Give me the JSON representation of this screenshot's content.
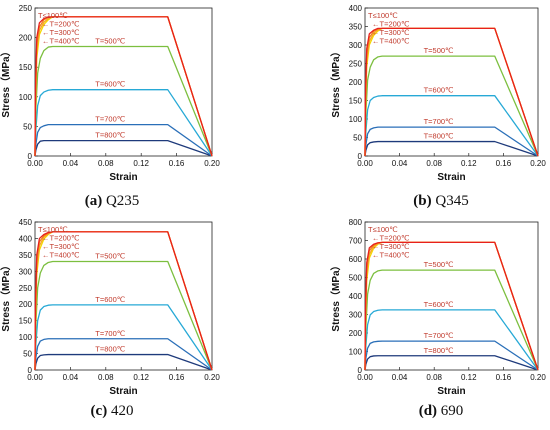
{
  "figure": {
    "panels_order": [
      "Q235",
      "Q345",
      "420",
      "690"
    ]
  },
  "chart_data": [
    {
      "type": "line",
      "panel_letter": "(a)",
      "panel_name": "Q235",
      "xlabel": "Strain",
      "ylabel": "Stress（MPa）",
      "xlim": [
        0,
        0.2
      ],
      "ylim": [
        0,
        250
      ],
      "xticks": [
        "0.00",
        "0.04",
        "0.08",
        "0.12",
        "0.16",
        "0.20"
      ],
      "yticks": [
        "0",
        "50",
        "100",
        "150",
        "200",
        "250"
      ],
      "series": [
        {
          "name": "T≤100℃",
          "color": "#e8201c",
          "x": [
            0,
            0.0005,
            0.002,
            0.005,
            0.01,
            0.015,
            0.02,
            0.15,
            0.2
          ],
          "y": [
            0,
            110,
            200,
            225,
            232,
            235,
            235,
            235,
            0
          ]
        },
        {
          "name": "T=200℃",
          "color": "#f0801e",
          "x": [
            0,
            0.0005,
            0.002,
            0.005,
            0.01,
            0.015,
            0.02,
            0.15,
            0.2
          ],
          "y": [
            0,
            100,
            190,
            218,
            230,
            234,
            235,
            235,
            0
          ]
        },
        {
          "name": "T=300℃",
          "color": "#f7a52a",
          "x": [
            0,
            0.0005,
            0.002,
            0.005,
            0.01,
            0.015,
            0.02,
            0.15,
            0.2
          ],
          "y": [
            0,
            90,
            180,
            212,
            226,
            232,
            235,
            235,
            0
          ]
        },
        {
          "name": "T=400℃",
          "color": "#f5d800",
          "x": [
            0,
            0.0005,
            0.002,
            0.005,
            0.01,
            0.015,
            0.02,
            0.15,
            0.2
          ],
          "y": [
            0,
            80,
            165,
            205,
            222,
            230,
            235,
            235,
            0
          ]
        },
        {
          "name": "T=500℃",
          "color": "#7cbf3f",
          "x": [
            0,
            0.001,
            0.003,
            0.006,
            0.01,
            0.015,
            0.02,
            0.15,
            0.2
          ],
          "y": [
            0,
            80,
            140,
            165,
            178,
            184,
            185,
            185,
            0
          ]
        },
        {
          "name": "T=600℃",
          "color": "#27a9d6",
          "x": [
            0,
            0.001,
            0.003,
            0.006,
            0.01,
            0.015,
            0.02,
            0.15,
            0.2
          ],
          "y": [
            0,
            45,
            85,
            102,
            108,
            111,
            112,
            112,
            0
          ]
        },
        {
          "name": "T=700℃",
          "color": "#2a6fb8",
          "x": [
            0,
            0.001,
            0.003,
            0.006,
            0.01,
            0.015,
            0.02,
            0.15,
            0.2
          ],
          "y": [
            0,
            20,
            40,
            48,
            51,
            53,
            53,
            53,
            0
          ]
        },
        {
          "name": "T=800℃",
          "color": "#1e3a7b",
          "x": [
            0,
            0.001,
            0.003,
            0.006,
            0.01,
            0.015,
            0.02,
            0.15,
            0.2
          ],
          "y": [
            0,
            10,
            20,
            25,
            26,
            26,
            26,
            26,
            0
          ]
        }
      ]
    },
    {
      "type": "line",
      "panel_letter": "(b)",
      "panel_name": "Q345",
      "xlabel": "Strain",
      "ylabel": "Stress（MPa）",
      "xlim": [
        0,
        0.2
      ],
      "ylim": [
        0,
        400
      ],
      "xticks": [
        "0.00",
        "0.04",
        "0.08",
        "0.12",
        "0.16",
        "0.20"
      ],
      "yticks": [
        "0",
        "50",
        "100",
        "150",
        "200",
        "250",
        "300",
        "350",
        "400"
      ],
      "series": [
        {
          "name": "T≤100℃",
          "color": "#e8201c",
          "x": [
            0,
            0.0005,
            0.002,
            0.005,
            0.01,
            0.015,
            0.02,
            0.15,
            0.2
          ],
          "y": [
            0,
            160,
            290,
            330,
            340,
            345,
            345,
            345,
            0
          ]
        },
        {
          "name": "T=200℃",
          "color": "#f0801e",
          "x": [
            0,
            0.0005,
            0.002,
            0.005,
            0.01,
            0.015,
            0.02,
            0.15,
            0.2
          ],
          "y": [
            0,
            145,
            275,
            320,
            337,
            343,
            345,
            345,
            0
          ]
        },
        {
          "name": "T=300℃",
          "color": "#f7a52a",
          "x": [
            0,
            0.0005,
            0.002,
            0.005,
            0.01,
            0.015,
            0.02,
            0.15,
            0.2
          ],
          "y": [
            0,
            130,
            260,
            310,
            332,
            341,
            345,
            345,
            0
          ]
        },
        {
          "name": "T=400℃",
          "color": "#f5d800",
          "x": [
            0,
            0.0005,
            0.002,
            0.005,
            0.01,
            0.015,
            0.02,
            0.15,
            0.2
          ],
          "y": [
            0,
            115,
            240,
            300,
            326,
            338,
            345,
            345,
            0
          ]
        },
        {
          "name": "T=500℃",
          "color": "#7cbf3f",
          "x": [
            0,
            0.001,
            0.003,
            0.006,
            0.01,
            0.015,
            0.02,
            0.15,
            0.2
          ],
          "y": [
            0,
            115,
            205,
            240,
            260,
            268,
            270,
            270,
            0
          ]
        },
        {
          "name": "T=600℃",
          "color": "#27a9d6",
          "x": [
            0,
            0.001,
            0.003,
            0.006,
            0.01,
            0.015,
            0.02,
            0.15,
            0.2
          ],
          "y": [
            0,
            65,
            125,
            150,
            158,
            162,
            163,
            163,
            0
          ]
        },
        {
          "name": "T=700℃",
          "color": "#2a6fb8",
          "x": [
            0,
            0.001,
            0.003,
            0.006,
            0.01,
            0.015,
            0.02,
            0.15,
            0.2
          ],
          "y": [
            0,
            30,
            60,
            72,
            76,
            78,
            78,
            78,
            0
          ]
        },
        {
          "name": "T=800℃",
          "color": "#1e3a7b",
          "x": [
            0,
            0.001,
            0.003,
            0.006,
            0.01,
            0.015,
            0.02,
            0.15,
            0.2
          ],
          "y": [
            0,
            15,
            30,
            36,
            38,
            39,
            39,
            39,
            0
          ]
        }
      ]
    },
    {
      "type": "line",
      "panel_letter": "(c)",
      "panel_name": "420",
      "xlabel": "Strain",
      "ylabel": "Stress（MPa）",
      "xlim": [
        0,
        0.2
      ],
      "ylim": [
        0,
        450
      ],
      "xticks": [
        "0.00",
        "0.04",
        "0.08",
        "0.12",
        "0.16",
        "0.20"
      ],
      "yticks": [
        "0",
        "50",
        "100",
        "150",
        "200",
        "250",
        "300",
        "350",
        "400",
        "450"
      ],
      "series": [
        {
          "name": "T≤100℃",
          "color": "#e8201c",
          "x": [
            0,
            0.0005,
            0.002,
            0.005,
            0.01,
            0.015,
            0.02,
            0.15,
            0.2
          ],
          "y": [
            0,
            195,
            350,
            400,
            412,
            418,
            420,
            420,
            0
          ]
        },
        {
          "name": "T=200℃",
          "color": "#f0801e",
          "x": [
            0,
            0.0005,
            0.002,
            0.005,
            0.01,
            0.015,
            0.02,
            0.15,
            0.2
          ],
          "y": [
            0,
            175,
            330,
            390,
            408,
            416,
            420,
            420,
            0
          ]
        },
        {
          "name": "T=300℃",
          "color": "#f7a52a",
          "x": [
            0,
            0.0005,
            0.002,
            0.005,
            0.01,
            0.015,
            0.02,
            0.15,
            0.2
          ],
          "y": [
            0,
            160,
            310,
            378,
            404,
            414,
            420,
            420,
            0
          ]
        },
        {
          "name": "T=400℃",
          "color": "#f5d800",
          "x": [
            0,
            0.0005,
            0.002,
            0.005,
            0.01,
            0.015,
            0.02,
            0.15,
            0.2
          ],
          "y": [
            0,
            140,
            290,
            365,
            398,
            412,
            420,
            420,
            0
          ]
        },
        {
          "name": "T=500℃",
          "color": "#7cbf3f",
          "x": [
            0,
            0.001,
            0.003,
            0.006,
            0.01,
            0.015,
            0.02,
            0.15,
            0.2
          ],
          "y": [
            0,
            140,
            250,
            295,
            318,
            327,
            330,
            330,
            0
          ]
        },
        {
          "name": "T=600℃",
          "color": "#27a9d6",
          "x": [
            0,
            0.001,
            0.003,
            0.006,
            0.01,
            0.015,
            0.02,
            0.15,
            0.2
          ],
          "y": [
            0,
            80,
            150,
            182,
            193,
            197,
            198,
            198,
            0
          ]
        },
        {
          "name": "T=700℃",
          "color": "#2a6fb8",
          "x": [
            0,
            0.001,
            0.003,
            0.006,
            0.01,
            0.015,
            0.02,
            0.15,
            0.2
          ],
          "y": [
            0,
            38,
            72,
            88,
            93,
            95,
            95,
            95,
            0
          ]
        },
        {
          "name": "T=800℃",
          "color": "#1e3a7b",
          "x": [
            0,
            0.001,
            0.003,
            0.006,
            0.01,
            0.015,
            0.02,
            0.15,
            0.2
          ],
          "y": [
            0,
            19,
            36,
            44,
            46,
            47,
            47,
            47,
            0
          ]
        }
      ]
    },
    {
      "type": "line",
      "panel_letter": "(d)",
      "panel_name": "690",
      "xlabel": "Strain",
      "ylabel": "Stress（MPa）",
      "xlim": [
        0,
        0.2
      ],
      "ylim": [
        0,
        800
      ],
      "xticks": [
        "0.00",
        "0.04",
        "0.08",
        "0.12",
        "0.16",
        "0.20"
      ],
      "yticks": [
        "0",
        "100",
        "200",
        "300",
        "400",
        "500",
        "600",
        "700",
        "800"
      ],
      "series": [
        {
          "name": "T≤100℃",
          "color": "#e8201c",
          "x": [
            0,
            0.0005,
            0.002,
            0.005,
            0.01,
            0.015,
            0.02,
            0.15,
            0.2
          ],
          "y": [
            0,
            320,
            580,
            660,
            680,
            688,
            690,
            690,
            0
          ]
        },
        {
          "name": "T=200℃",
          "color": "#f0801e",
          "x": [
            0,
            0.0005,
            0.002,
            0.005,
            0.01,
            0.015,
            0.02,
            0.15,
            0.2
          ],
          "y": [
            0,
            290,
            550,
            645,
            675,
            686,
            690,
            690,
            0
          ]
        },
        {
          "name": "T=300℃",
          "color": "#f7a52a",
          "x": [
            0,
            0.0005,
            0.002,
            0.005,
            0.01,
            0.015,
            0.02,
            0.15,
            0.2
          ],
          "y": [
            0,
            260,
            520,
            625,
            668,
            683,
            690,
            690,
            0
          ]
        },
        {
          "name": "T=400℃",
          "color": "#f5d800",
          "x": [
            0,
            0.0005,
            0.002,
            0.005,
            0.01,
            0.015,
            0.02,
            0.15,
            0.2
          ],
          "y": [
            0,
            230,
            480,
            605,
            658,
            680,
            690,
            690,
            0
          ]
        },
        {
          "name": "T=500℃",
          "color": "#7cbf3f",
          "x": [
            0,
            0.001,
            0.003,
            0.006,
            0.01,
            0.015,
            0.02,
            0.15,
            0.2
          ],
          "y": [
            0,
            230,
            410,
            485,
            522,
            536,
            540,
            540,
            0
          ]
        },
        {
          "name": "T=600℃",
          "color": "#27a9d6",
          "x": [
            0,
            0.001,
            0.003,
            0.006,
            0.01,
            0.015,
            0.02,
            0.15,
            0.2
          ],
          "y": [
            0,
            130,
            245,
            298,
            316,
            323,
            325,
            325,
            0
          ]
        },
        {
          "name": "T=700℃",
          "color": "#2a6fb8",
          "x": [
            0,
            0.001,
            0.003,
            0.006,
            0.01,
            0.015,
            0.02,
            0.15,
            0.2
          ],
          "y": [
            0,
            63,
            118,
            144,
            152,
            155,
            156,
            156,
            0
          ]
        },
        {
          "name": "T=800℃",
          "color": "#1e3a7b",
          "x": [
            0,
            0.001,
            0.003,
            0.006,
            0.01,
            0.015,
            0.02,
            0.15,
            0.2
          ],
          "y": [
            0,
            31,
            59,
            72,
            76,
            77,
            77,
            77,
            0
          ]
        }
      ]
    }
  ]
}
